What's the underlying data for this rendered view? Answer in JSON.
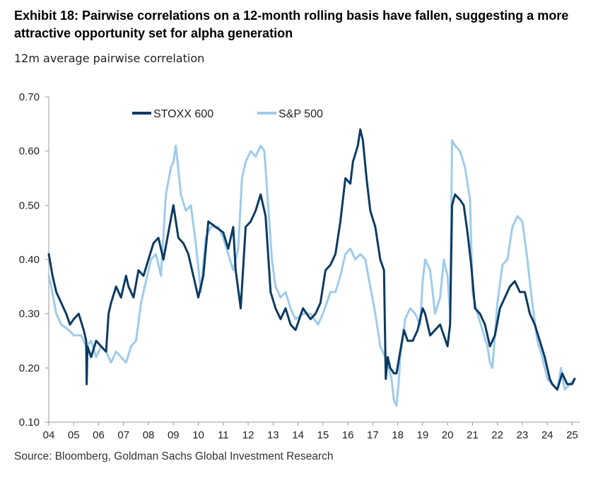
{
  "title": "Exhibit 18: Pairwise correlations on a 12-month rolling basis have fallen, suggesting a more attractive opportunity set for alpha generation",
  "subtitle": "12m average pairwise correlation",
  "source": "Source: Bloomberg, Goldman Sachs Global Investment Research",
  "chart_data": {
    "type": "line",
    "xlabel": "",
    "ylabel": "",
    "ylim": [
      0.1,
      0.7
    ],
    "xlim": [
      2004.0,
      2025.3
    ],
    "x_tick_labels": [
      "04",
      "05",
      "06",
      "07",
      "08",
      "09",
      "10",
      "11",
      "12",
      "13",
      "14",
      "15",
      "16",
      "17",
      "18",
      "19",
      "20",
      "21",
      "22",
      "23",
      "24",
      "25"
    ],
    "y_tick_labels": [
      "0.10",
      "0.20",
      "0.30",
      "0.40",
      "0.50",
      "0.60",
      "0.70"
    ],
    "grid": false,
    "legend_position": "top-left",
    "series": [
      {
        "name": "STOXX 600",
        "color": "#0b3a63",
        "points": [
          [
            2004.0,
            0.41
          ],
          [
            2004.15,
            0.37
          ],
          [
            2004.3,
            0.34
          ],
          [
            2004.5,
            0.32
          ],
          [
            2004.7,
            0.3
          ],
          [
            2004.85,
            0.28
          ],
          [
            2005.0,
            0.29
          ],
          [
            2005.2,
            0.3
          ],
          [
            2005.4,
            0.27
          ],
          [
            2005.5,
            0.25
          ],
          [
            2005.52,
            0.17
          ],
          [
            2005.55,
            0.24
          ],
          [
            2005.7,
            0.22
          ],
          [
            2005.9,
            0.25
          ],
          [
            2006.1,
            0.24
          ],
          [
            2006.3,
            0.23
          ],
          [
            2006.4,
            0.3
          ],
          [
            2006.5,
            0.32
          ],
          [
            2006.7,
            0.35
          ],
          [
            2006.9,
            0.33
          ],
          [
            2007.1,
            0.37
          ],
          [
            2007.2,
            0.35
          ],
          [
            2007.4,
            0.33
          ],
          [
            2007.6,
            0.38
          ],
          [
            2007.8,
            0.37
          ],
          [
            2008.0,
            0.4
          ],
          [
            2008.2,
            0.43
          ],
          [
            2008.4,
            0.44
          ],
          [
            2008.6,
            0.4
          ],
          [
            2008.8,
            0.45
          ],
          [
            2009.0,
            0.5
          ],
          [
            2009.2,
            0.44
          ],
          [
            2009.4,
            0.43
          ],
          [
            2009.6,
            0.41
          ],
          [
            2009.8,
            0.37
          ],
          [
            2010.0,
            0.33
          ],
          [
            2010.2,
            0.37
          ],
          [
            2010.4,
            0.47
          ],
          [
            2010.7,
            0.46
          ],
          [
            2011.0,
            0.45
          ],
          [
            2011.2,
            0.42
          ],
          [
            2011.4,
            0.46
          ],
          [
            2011.5,
            0.38
          ],
          [
            2011.7,
            0.31
          ],
          [
            2011.9,
            0.46
          ],
          [
            2012.1,
            0.47
          ],
          [
            2012.3,
            0.49
          ],
          [
            2012.5,
            0.52
          ],
          [
            2012.7,
            0.48
          ],
          [
            2012.9,
            0.34
          ],
          [
            2013.1,
            0.31
          ],
          [
            2013.3,
            0.29
          ],
          [
            2013.5,
            0.31
          ],
          [
            2013.7,
            0.28
          ],
          [
            2013.9,
            0.27
          ],
          [
            2014.2,
            0.31
          ],
          [
            2014.5,
            0.29
          ],
          [
            2014.7,
            0.3
          ],
          [
            2014.9,
            0.32
          ],
          [
            2015.1,
            0.38
          ],
          [
            2015.3,
            0.39
          ],
          [
            2015.5,
            0.41
          ],
          [
            2015.7,
            0.47
          ],
          [
            2015.9,
            0.55
          ],
          [
            2016.1,
            0.54
          ],
          [
            2016.2,
            0.58
          ],
          [
            2016.4,
            0.61
          ],
          [
            2016.5,
            0.64
          ],
          [
            2016.6,
            0.62
          ],
          [
            2016.75,
            0.55
          ],
          [
            2016.9,
            0.49
          ],
          [
            2017.1,
            0.46
          ],
          [
            2017.3,
            0.4
          ],
          [
            2017.45,
            0.38
          ],
          [
            2017.52,
            0.18
          ],
          [
            2017.6,
            0.22
          ],
          [
            2017.7,
            0.2
          ],
          [
            2017.85,
            0.19
          ],
          [
            2017.95,
            0.19
          ],
          [
            2018.1,
            0.23
          ],
          [
            2018.25,
            0.27
          ],
          [
            2018.4,
            0.25
          ],
          [
            2018.6,
            0.25
          ],
          [
            2018.8,
            0.27
          ],
          [
            2019.0,
            0.31
          ],
          [
            2019.1,
            0.3
          ],
          [
            2019.3,
            0.26
          ],
          [
            2019.5,
            0.27
          ],
          [
            2019.7,
            0.28
          ],
          [
            2019.85,
            0.26
          ],
          [
            2020.0,
            0.24
          ],
          [
            2020.1,
            0.28
          ],
          [
            2020.18,
            0.5
          ],
          [
            2020.3,
            0.52
          ],
          [
            2020.5,
            0.51
          ],
          [
            2020.65,
            0.5
          ],
          [
            2020.8,
            0.45
          ],
          [
            2020.95,
            0.39
          ],
          [
            2021.1,
            0.31
          ],
          [
            2021.3,
            0.3
          ],
          [
            2021.5,
            0.28
          ],
          [
            2021.7,
            0.24
          ],
          [
            2021.9,
            0.26
          ],
          [
            2022.1,
            0.31
          ],
          [
            2022.3,
            0.33
          ],
          [
            2022.5,
            0.35
          ],
          [
            2022.7,
            0.36
          ],
          [
            2022.9,
            0.34
          ],
          [
            2023.1,
            0.34
          ],
          [
            2023.3,
            0.3
          ],
          [
            2023.5,
            0.28
          ],
          [
            2023.7,
            0.25
          ],
          [
            2023.9,
            0.22
          ],
          [
            2024.1,
            0.18
          ],
          [
            2024.2,
            0.17
          ],
          [
            2024.4,
            0.16
          ],
          [
            2024.6,
            0.19
          ],
          [
            2024.8,
            0.17
          ],
          [
            2025.0,
            0.17
          ],
          [
            2025.1,
            0.18
          ]
        ]
      },
      {
        "name": "S&P 500",
        "color": "#9ecbec",
        "points": [
          [
            2004.0,
            0.37
          ],
          [
            2004.1,
            0.35
          ],
          [
            2004.3,
            0.3
          ],
          [
            2004.5,
            0.28
          ],
          [
            2004.8,
            0.27
          ],
          [
            2005.0,
            0.26
          ],
          [
            2005.3,
            0.26
          ],
          [
            2005.5,
            0.24
          ],
          [
            2005.7,
            0.25
          ],
          [
            2005.9,
            0.22
          ],
          [
            2006.1,
            0.24
          ],
          [
            2006.3,
            0.23
          ],
          [
            2006.5,
            0.21
          ],
          [
            2006.7,
            0.23
          ],
          [
            2006.9,
            0.22
          ],
          [
            2007.1,
            0.21
          ],
          [
            2007.3,
            0.24
          ],
          [
            2007.5,
            0.25
          ],
          [
            2007.7,
            0.32
          ],
          [
            2007.9,
            0.36
          ],
          [
            2008.1,
            0.4
          ],
          [
            2008.3,
            0.41
          ],
          [
            2008.5,
            0.37
          ],
          [
            2008.7,
            0.52
          ],
          [
            2008.9,
            0.57
          ],
          [
            2009.0,
            0.58
          ],
          [
            2009.1,
            0.61
          ],
          [
            2009.3,
            0.52
          ],
          [
            2009.5,
            0.49
          ],
          [
            2009.7,
            0.5
          ],
          [
            2009.9,
            0.43
          ],
          [
            2010.1,
            0.34
          ],
          [
            2010.3,
            0.44
          ],
          [
            2010.5,
            0.46
          ],
          [
            2010.8,
            0.46
          ],
          [
            2011.0,
            0.44
          ],
          [
            2011.2,
            0.41
          ],
          [
            2011.4,
            0.38
          ],
          [
            2011.6,
            0.42
          ],
          [
            2011.75,
            0.55
          ],
          [
            2011.9,
            0.58
          ],
          [
            2012.1,
            0.6
          ],
          [
            2012.3,
            0.59
          ],
          [
            2012.5,
            0.61
          ],
          [
            2012.65,
            0.6
          ],
          [
            2012.8,
            0.5
          ],
          [
            2012.95,
            0.4
          ],
          [
            2013.1,
            0.35
          ],
          [
            2013.3,
            0.33
          ],
          [
            2013.5,
            0.34
          ],
          [
            2013.7,
            0.31
          ],
          [
            2013.9,
            0.29
          ],
          [
            2014.2,
            0.3
          ],
          [
            2014.5,
            0.3
          ],
          [
            2014.8,
            0.28
          ],
          [
            2015.0,
            0.3
          ],
          [
            2015.3,
            0.34
          ],
          [
            2015.5,
            0.34
          ],
          [
            2015.7,
            0.37
          ],
          [
            2015.9,
            0.41
          ],
          [
            2016.1,
            0.42
          ],
          [
            2016.3,
            0.4
          ],
          [
            2016.5,
            0.41
          ],
          [
            2016.7,
            0.4
          ],
          [
            2016.9,
            0.35
          ],
          [
            2017.1,
            0.3
          ],
          [
            2017.3,
            0.24
          ],
          [
            2017.5,
            0.22
          ],
          [
            2017.65,
            0.2
          ],
          [
            2017.75,
            0.18
          ],
          [
            2017.85,
            0.14
          ],
          [
            2017.95,
            0.13
          ],
          [
            2018.05,
            0.18
          ],
          [
            2018.1,
            0.22
          ],
          [
            2018.3,
            0.29
          ],
          [
            2018.5,
            0.31
          ],
          [
            2018.7,
            0.3
          ],
          [
            2018.9,
            0.28
          ],
          [
            2019.0,
            0.36
          ],
          [
            2019.1,
            0.4
          ],
          [
            2019.3,
            0.38
          ],
          [
            2019.5,
            0.3
          ],
          [
            2019.7,
            0.33
          ],
          [
            2019.85,
            0.4
          ],
          [
            2020.0,
            0.37
          ],
          [
            2020.1,
            0.3
          ],
          [
            2020.18,
            0.62
          ],
          [
            2020.3,
            0.61
          ],
          [
            2020.5,
            0.6
          ],
          [
            2020.7,
            0.57
          ],
          [
            2020.9,
            0.51
          ],
          [
            2021.0,
            0.34
          ],
          [
            2021.2,
            0.3
          ],
          [
            2021.4,
            0.27
          ],
          [
            2021.6,
            0.24
          ],
          [
            2021.7,
            0.21
          ],
          [
            2021.8,
            0.2
          ],
          [
            2022.0,
            0.32
          ],
          [
            2022.2,
            0.39
          ],
          [
            2022.4,
            0.4
          ],
          [
            2022.6,
            0.46
          ],
          [
            2022.8,
            0.48
          ],
          [
            2023.0,
            0.47
          ],
          [
            2023.2,
            0.4
          ],
          [
            2023.4,
            0.32
          ],
          [
            2023.6,
            0.25
          ],
          [
            2023.8,
            0.22
          ],
          [
            2024.0,
            0.18
          ],
          [
            2024.2,
            0.17
          ],
          [
            2024.4,
            0.16
          ],
          [
            2024.55,
            0.2
          ],
          [
            2024.7,
            0.16
          ],
          [
            2024.9,
            0.17
          ],
          [
            2025.1,
            0.18
          ]
        ]
      }
    ]
  }
}
